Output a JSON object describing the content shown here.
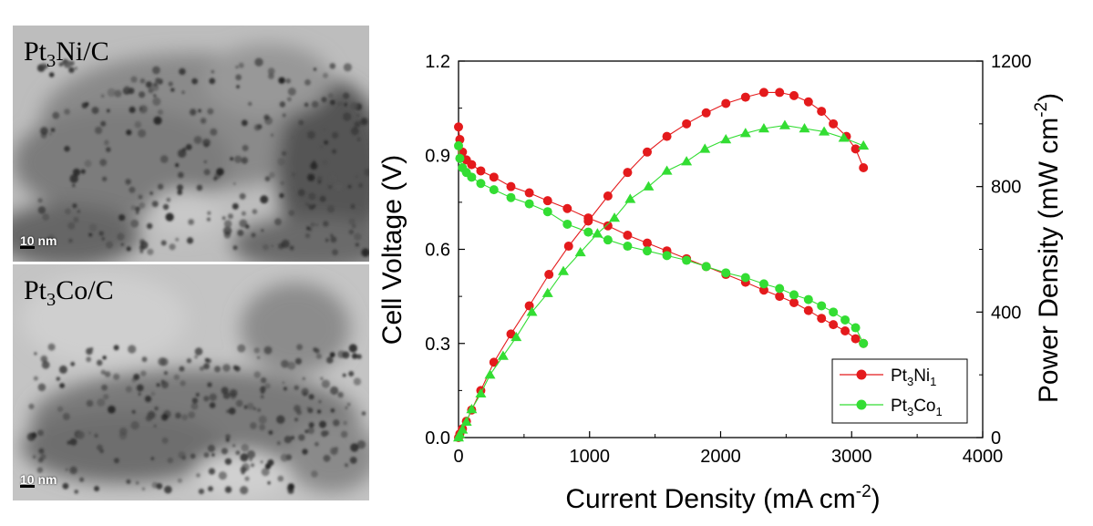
{
  "panels": {
    "top": {
      "label_main": "Pt",
      "label_sub": "3",
      "label_rest": "Ni/C",
      "scale_label": "10 nm"
    },
    "bottom": {
      "label_main": "Pt",
      "label_sub": "3",
      "label_rest": "Co/C",
      "scale_label": "10 nm"
    }
  },
  "colors": {
    "red": "#e41a1c",
    "green": "#33dd33"
  },
  "chart_data": {
    "type": "line",
    "xlabel": "Current Density (mA cm",
    "xlabel_sup": "-2",
    "xlabel_end": ")",
    "ylabel_left": "Cell Voltage (V)",
    "ylabel_right": "Power Density (mW cm",
    "ylabel_right_sup": "-2",
    "ylabel_right_end": ")",
    "xlim": [
      0,
      4000
    ],
    "ylim_left": [
      0.0,
      1.2
    ],
    "ylim_right": [
      0,
      1200
    ],
    "x_ticks": [
      0,
      1000,
      2000,
      3000,
      4000
    ],
    "y_left_ticks": [
      "0.0",
      "0.3",
      "0.6",
      "0.9",
      "1.2"
    ],
    "y_right_ticks": [
      "0",
      "400",
      "800",
      "1200"
    ],
    "legend": [
      {
        "name": "Pt",
        "sub": "3",
        "rest": "Ni",
        "sub2": "1",
        "color": "#e41a1c"
      },
      {
        "name": "Pt",
        "sub": "3",
        "rest": "Co",
        "sub2": "1",
        "color": "#33dd33"
      }
    ],
    "series": [
      {
        "name": "Pt3Ni1 voltage",
        "axis": "left",
        "marker": "circle",
        "color": "#e41a1c",
        "x": [
          0,
          10,
          30,
          60,
          100,
          170,
          270,
          400,
          540,
          680,
          830,
          990,
          1140,
          1290,
          1440,
          1590,
          1740,
          1890,
          2040,
          2190,
          2330,
          2450,
          2560,
          2670,
          2770,
          2860,
          2950,
          3030,
          3090
        ],
        "y": [
          0.99,
          0.95,
          0.91,
          0.885,
          0.87,
          0.85,
          0.83,
          0.8,
          0.78,
          0.755,
          0.73,
          0.7,
          0.675,
          0.645,
          0.62,
          0.595,
          0.57,
          0.545,
          0.52,
          0.495,
          0.47,
          0.45,
          0.43,
          0.405,
          0.38,
          0.36,
          0.34,
          0.315,
          0.3
        ]
      },
      {
        "name": "Pt3Co1 voltage",
        "axis": "left",
        "marker": "circle",
        "color": "#33dd33",
        "x": [
          0,
          10,
          30,
          60,
          100,
          170,
          270,
          400,
          540,
          680,
          830,
          990,
          1140,
          1290,
          1440,
          1590,
          1740,
          1890,
          2040,
          2190,
          2330,
          2450,
          2560,
          2670,
          2770,
          2860,
          2950,
          3030,
          3090
        ],
        "y": [
          0.93,
          0.89,
          0.86,
          0.845,
          0.83,
          0.81,
          0.79,
          0.765,
          0.745,
          0.72,
          0.68,
          0.655,
          0.63,
          0.61,
          0.595,
          0.58,
          0.565,
          0.545,
          0.525,
          0.51,
          0.49,
          0.475,
          0.455,
          0.44,
          0.42,
          0.4,
          0.375,
          0.35,
          0.3
        ]
      },
      {
        "name": "Pt3Ni1 power",
        "axis": "right",
        "marker": "circle",
        "color": "#e41a1c",
        "x": [
          0,
          10,
          30,
          60,
          100,
          170,
          270,
          400,
          540,
          690,
          840,
          990,
          1140,
          1290,
          1440,
          1590,
          1740,
          1890,
          2040,
          2190,
          2330,
          2450,
          2560,
          2670,
          2770,
          2860,
          2960,
          3030,
          3090
        ],
        "y": [
          0,
          12,
          28,
          52,
          88,
          150,
          240,
          330,
          420,
          520,
          610,
          690,
          770,
          845,
          910,
          960,
          1000,
          1035,
          1065,
          1085,
          1100,
          1100,
          1090,
          1070,
          1040,
          1000,
          960,
          920,
          860
        ]
      },
      {
        "name": "Pt3Co1 power",
        "axis": "right",
        "marker": "triangle",
        "color": "#33dd33",
        "x": [
          0,
          10,
          30,
          60,
          100,
          170,
          240,
          340,
          440,
          560,
          680,
          800,
          930,
          1060,
          1190,
          1310,
          1450,
          1590,
          1740,
          1880,
          2040,
          2190,
          2330,
          2490,
          2640,
          2790,
          2940,
          3090
        ],
        "y": [
          0,
          10,
          25,
          50,
          90,
          140,
          200,
          260,
          320,
          400,
          460,
          530,
          590,
          650,
          700,
          760,
          800,
          850,
          880,
          920,
          950,
          970,
          985,
          995,
          985,
          975,
          955,
          930
        ]
      }
    ]
  }
}
